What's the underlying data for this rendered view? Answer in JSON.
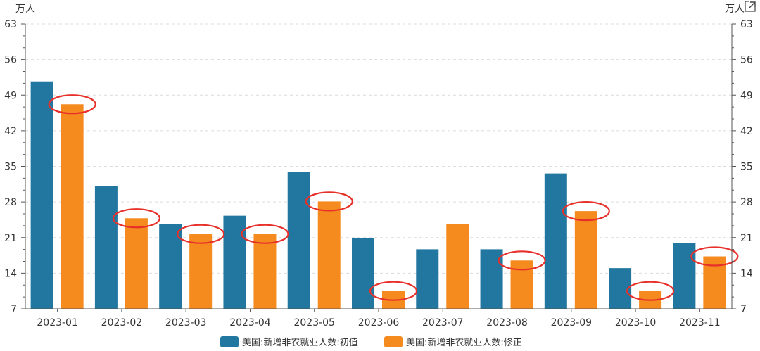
{
  "chart_data": {
    "type": "bar",
    "y_unit_left": "万人",
    "y_unit_right": "万人",
    "categories": [
      "2023-01",
      "2023-02",
      "2023-03",
      "2023-04",
      "2023-05",
      "2023-06",
      "2023-07",
      "2023-08",
      "2023-09",
      "2023-10",
      "2023-11"
    ],
    "series": [
      {
        "name": "美国:新增非农就业人数:初值",
        "color": "#21779f",
        "values": [
          51.7,
          31.1,
          23.6,
          25.3,
          33.9,
          20.9,
          18.7,
          18.7,
          33.6,
          15.0,
          19.9
        ]
      },
      {
        "name": "美国:新增非农就业人数:修正",
        "color": "#f58a1f",
        "values": [
          47.2,
          24.8,
          21.7,
          21.7,
          28.1,
          10.5,
          23.6,
          16.5,
          26.2,
          10.5,
          17.3
        ]
      }
    ],
    "highlighted": {
      "series": 1,
      "indices": [
        0,
        1,
        2,
        3,
        4,
        5,
        7,
        8,
        9,
        10
      ],
      "color": "#e8302a"
    },
    "ylim": [
      7,
      63
    ],
    "yticks": [
      7,
      14,
      21,
      28,
      35,
      42,
      49,
      56,
      63
    ],
    "grid": true,
    "legend_position": "bottom-center"
  },
  "icons": {
    "export": "external-link-icon"
  }
}
